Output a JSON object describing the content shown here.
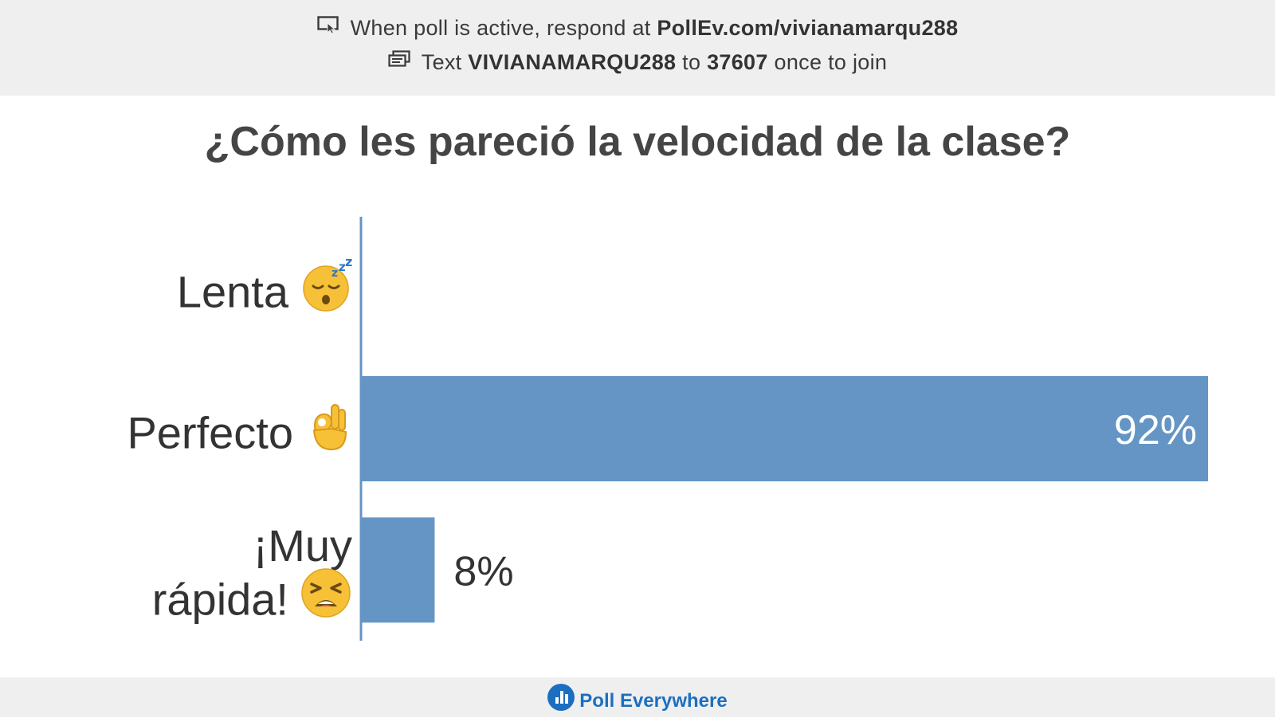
{
  "header": {
    "line1_prefix": "When poll is active, respond at",
    "line1_url": "PollEv.com/vivianamarqu288",
    "line2_text": "Text",
    "line2_code": "VIVIANAMARQU288",
    "line2_to": "to",
    "line2_number": "37607",
    "line2_suffix": "once to join",
    "icon1": "screen-cursor-icon",
    "icon2": "sms-message-icon"
  },
  "question": "¿Cómo les pareció la velocidad de la clase?",
  "chart_data": {
    "type": "bar",
    "orientation": "horizontal",
    "title": "¿Cómo les pareció la velocidad de la clase?",
    "categories": [
      "Lenta",
      "Perfecto",
      "¡Muy rápida!"
    ],
    "category_lines": [
      [
        "Lenta"
      ],
      [
        "Perfecto"
      ],
      [
        "¡Muy",
        "rápida!"
      ]
    ],
    "category_emoji": [
      "sleeping-face-icon",
      "ok-hand-icon",
      "tired-face-icon"
    ],
    "values": [
      0,
      92,
      8
    ],
    "value_labels": [
      "",
      "92%",
      "8%"
    ],
    "xlim": [
      0,
      92
    ],
    "bar_color": "#6495c5",
    "grid": false,
    "legend": "none"
  },
  "footer": {
    "brand": "Poll Everywhere",
    "brand_color": "#1c6fc0",
    "logo_icon": "poll-everywhere-logo-icon"
  }
}
